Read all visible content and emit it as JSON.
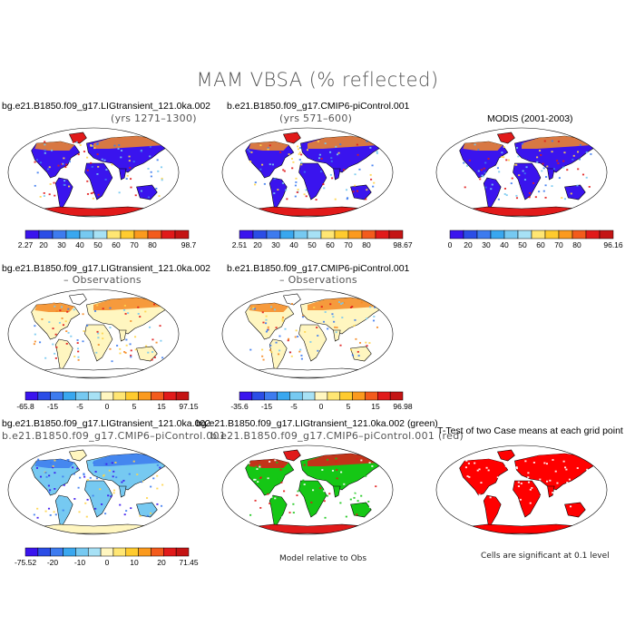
{
  "figure": {
    "title": "MAM VBSA (% reflected)"
  },
  "colors": {
    "ocean": "#ffffff",
    "land_outline": "#000000",
    "low_blue": "#3a14ee",
    "mid_blue": "#3d7bef",
    "sky": "#76c9f1",
    "pale": "#fff6c0",
    "yellow": "#ffd54a",
    "orange": "#f58a24",
    "red": "#e11a1a",
    "dark_red": "#b01010",
    "green": "#15c715",
    "sig_red": "#ff0000"
  },
  "chart_data": [
    {
      "type": "heatmap",
      "title": "bg.e21.B1850.f09_g17.LIGtransient_121.0ka.002",
      "subtitle": "(yrs 1271–1300)",
      "style": "albedo",
      "colorbar": {
        "labels": [
          "2.27",
          "20",
          "30",
          "40",
          "50",
          "60",
          "70",
          "80",
          "",
          "98.7"
        ],
        "colors": [
          "#3a14ee",
          "#2b4de6",
          "#3d7bef",
          "#39a7ef",
          "#76c9f1",
          "#a7e1f5",
          "#ffe673",
          "#ffcb2e",
          "#fb9a1e",
          "#f35b1c",
          "#e11a1a",
          "#c41414"
        ]
      }
    },
    {
      "type": "heatmap",
      "title": "b.e21.B1850.f09_g17.CMIP6-piControl.001",
      "subtitle": "(yrs 571–600)",
      "style": "albedo",
      "colorbar": {
        "labels": [
          "2.51",
          "20",
          "30",
          "40",
          "50",
          "60",
          "70",
          "80",
          "",
          "98.67"
        ],
        "colors": [
          "#3a14ee",
          "#2b4de6",
          "#3d7bef",
          "#39a7ef",
          "#76c9f1",
          "#a7e1f5",
          "#ffe673",
          "#ffcb2e",
          "#fb9a1e",
          "#f35b1c",
          "#e11a1a",
          "#c41414"
        ]
      }
    },
    {
      "type": "heatmap",
      "title": "MODIS (2001-2003)",
      "subtitle": "",
      "style": "albedo",
      "colorbar": {
        "labels": [
          "0",
          "20",
          "30",
          "40",
          "50",
          "60",
          "70",
          "80",
          "",
          "96.16"
        ],
        "colors": [
          "#3a14ee",
          "#2b4de6",
          "#3d7bef",
          "#39a7ef",
          "#76c9f1",
          "#a7e1f5",
          "#ffe673",
          "#ffcb2e",
          "#fb9a1e",
          "#f35b1c",
          "#e11a1a",
          "#c41414"
        ]
      }
    },
    {
      "type": "heatmap",
      "title": "bg.e21.B1850.f09_g17.LIGtransient_121.0ka.002",
      "subtitle": "– Observations",
      "style": "diff",
      "colorbar": {
        "labels": [
          "-65.8",
          "-15",
          "-5",
          "0",
          "5",
          "15",
          "97.15"
        ],
        "colors": [
          "#3a14ee",
          "#2b4de6",
          "#3d7bef",
          "#39a7ef",
          "#76c9f1",
          "#a7e1f5",
          "#fff6c0",
          "#ffe673",
          "#ffcb2e",
          "#fb9a1e",
          "#f35b1c",
          "#e11a1a",
          "#c41414"
        ]
      }
    },
    {
      "type": "heatmap",
      "title": "b.e21.B1850.f09_g17.CMIP6-piControl.001",
      "subtitle": "– Observations",
      "style": "diff",
      "colorbar": {
        "labels": [
          "-35.6",
          "-15",
          "-5",
          "0",
          "5",
          "15",
          "96.98"
        ],
        "colors": [
          "#3a14ee",
          "#2b4de6",
          "#3d7bef",
          "#39a7ef",
          "#76c9f1",
          "#a7e1f5",
          "#fff6c0",
          "#ffe673",
          "#ffcb2e",
          "#fb9a1e",
          "#f35b1c",
          "#e11a1a",
          "#c41414"
        ]
      }
    },
    {
      "type": "heatmap",
      "title": "bg.e21.B1850.f09_g17.LIGtransient_121.0ka.002",
      "subtitle": "b.e21.B1850.f09_g17.CMIP6–piControl.001",
      "style": "casediff",
      "colorbar": {
        "labels": [
          "-75.52",
          "-20",
          "-10",
          "0",
          "10",
          "20",
          "71.45"
        ],
        "colors": [
          "#3a14ee",
          "#2b4de6",
          "#3d7bef",
          "#39a7ef",
          "#76c9f1",
          "#a7e1f5",
          "#fff6c0",
          "#ffe673",
          "#ffcb2e",
          "#fb9a1e",
          "#f35b1c",
          "#e11a1a",
          "#c41414"
        ]
      }
    },
    {
      "type": "heatmap",
      "title": "bg.e21.B1850.f09_g17.LIGtransient_121.0ka.002 (green)",
      "subtitle": "b.e21.B1850.f09_g17.CMIP6–piControl.001 (red)",
      "style": "relobs",
      "caption": "Model relative to Obs"
    },
    {
      "type": "heatmap",
      "title": "T-Test of two Case means at each grid point",
      "subtitle": "",
      "style": "ttest",
      "caption": "Cells are significant at 0.1 level"
    }
  ]
}
